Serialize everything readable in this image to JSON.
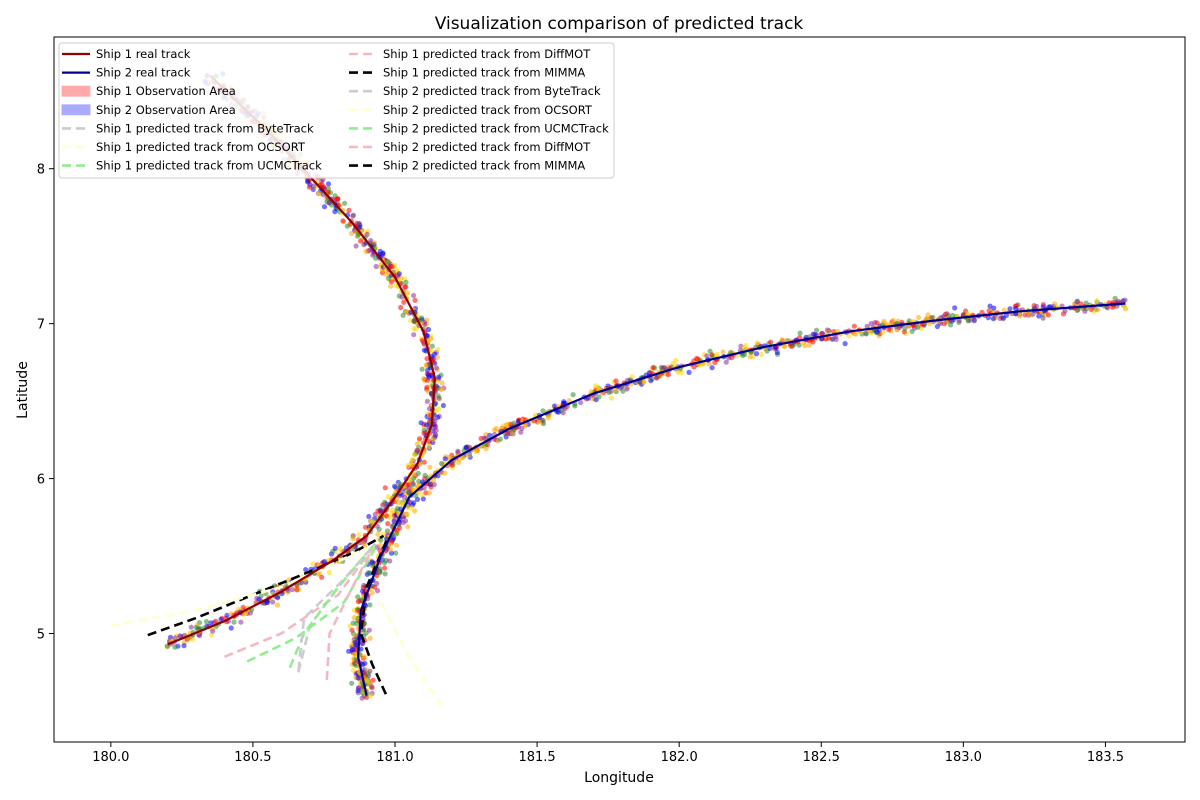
{
  "chart_data": {
    "type": "line",
    "title": "Visualization comparison of predicted track",
    "xlabel": "Longitude",
    "ylabel": "Latitude",
    "xlim": [
      179.8,
      183.78
    ],
    "ylim": [
      4.3,
      8.85
    ],
    "xticks": [
      "180.0",
      "180.5",
      "181.0",
      "181.5",
      "182.0",
      "182.5",
      "183.0",
      "183.5"
    ],
    "yticks": [
      "5",
      "6",
      "7",
      "8"
    ],
    "grid": false,
    "legend_position": "top-left",
    "legend_columns": 2,
    "legend": [
      {
        "label": "Ship 1 real track",
        "kind": "line",
        "color": "#8b0000"
      },
      {
        "label": "Ship 2 real track",
        "kind": "line",
        "color": "#00008b"
      },
      {
        "label": "Ship 1 Observation Area",
        "kind": "patch",
        "color": "#ffaaaa"
      },
      {
        "label": "Ship 2 Observation Area",
        "kind": "patch",
        "color": "#aaaaff"
      },
      {
        "label": "Ship 1 predicted track from ByteTrack",
        "kind": "dash",
        "color": "#cccccc"
      },
      {
        "label": "Ship 1 predicted track from OCSORT",
        "kind": "dash",
        "color": "#ffffd0"
      },
      {
        "label": "Ship 1 predicted track from UCMCTrack",
        "kind": "dash",
        "color": "#90ee90"
      },
      {
        "label": "Ship 1 predicted track from DiffMOT",
        "kind": "dash",
        "color": "#f4b8c0"
      },
      {
        "label": "Ship 1 predicted track from MIMMA",
        "kind": "dash",
        "color": "#000000"
      },
      {
        "label": "Ship 2 predicted track from ByteTrack",
        "kind": "dash",
        "color": "#cccccc"
      },
      {
        "label": "Ship 2 predicted track from OCSORT",
        "kind": "dash",
        "color": "#ffffd0"
      },
      {
        "label": "Ship 2 predicted track from UCMCTrack",
        "kind": "dash",
        "color": "#90ee90"
      },
      {
        "label": "Ship 2 predicted track from DiffMOT",
        "kind": "dash",
        "color": "#f4b8c0"
      },
      {
        "label": "Ship 2 predicted track from MIMMA",
        "kind": "dash",
        "color": "#000000"
      }
    ],
    "series": [
      {
        "name": "Ship 1 real track",
        "color": "#8b0000",
        "x": [
          180.2,
          180.4,
          180.6,
          180.78,
          180.9,
          181.0,
          181.08,
          181.13,
          181.14,
          181.1,
          181.0,
          180.85,
          180.75,
          180.65,
          180.55,
          180.45,
          180.35
        ],
        "y": [
          4.93,
          5.08,
          5.27,
          5.47,
          5.63,
          5.88,
          6.1,
          6.35,
          6.65,
          6.95,
          7.3,
          7.65,
          7.85,
          8.05,
          8.25,
          8.42,
          8.6
        ]
      },
      {
        "name": "Ship 2 real track",
        "color": "#00008b",
        "x": [
          180.9,
          180.87,
          180.88,
          180.95,
          181.05,
          181.2,
          181.4,
          181.7,
          182.0,
          182.3,
          182.6,
          182.9,
          183.2,
          183.57
        ],
        "y": [
          4.6,
          4.85,
          5.15,
          5.5,
          5.88,
          6.12,
          6.32,
          6.55,
          6.72,
          6.85,
          6.95,
          7.02,
          7.08,
          7.13
        ]
      },
      {
        "name": "Ship 1 predicted track from MIMMA",
        "color": "#000000",
        "dashed": true,
        "x": [
          180.13,
          180.3,
          180.5,
          180.7,
          180.85,
          180.96
        ],
        "y": [
          4.99,
          5.1,
          5.25,
          5.4,
          5.52,
          5.63
        ]
      },
      {
        "name": "Ship 2 predicted track from MIMMA",
        "color": "#000000",
        "dashed": true,
        "x": [
          180.97,
          180.9,
          180.88,
          180.92,
          180.97
        ],
        "y": [
          5.6,
          5.3,
          5.0,
          4.8,
          4.6
        ]
      },
      {
        "name": "Ship 1 predicted track from DiffMOT",
        "color": "#f4b8c0",
        "dashed": true,
        "x": [
          180.4,
          180.6,
          180.8,
          180.92
        ],
        "y": [
          4.85,
          5.0,
          5.25,
          5.55
        ]
      },
      {
        "name": "Ship 1 predicted track from UCMCTrack",
        "color": "#90ee90",
        "dashed": true,
        "x": [
          180.48,
          180.65,
          180.82,
          180.93
        ],
        "y": [
          4.82,
          4.97,
          5.2,
          5.55
        ]
      },
      {
        "name": "Ship 1 predicted track from ByteTrack",
        "color": "#cccccc",
        "dashed": true,
        "x": [
          180.66,
          180.7,
          180.8,
          180.93
        ],
        "y": [
          4.75,
          5.05,
          5.3,
          5.58
        ]
      },
      {
        "name": "Ship 1 predicted track from OCSORT",
        "color": "#ffffd0",
        "dashed": true,
        "x": [
          180.0,
          180.3,
          180.6,
          180.9
        ],
        "y": [
          5.05,
          5.15,
          5.3,
          5.55
        ]
      },
      {
        "name": "Ship 2 predicted track from DiffMOT",
        "color": "#f4b8c0",
        "dashed": true,
        "x": [
          180.76,
          180.77,
          180.85,
          180.93
        ],
        "y": [
          4.7,
          5.0,
          5.3,
          5.58
        ]
      },
      {
        "name": "Ship 2 predicted track from UCMCTrack",
        "color": "#90ee90",
        "dashed": true,
        "x": [
          180.63,
          180.68,
          180.8,
          180.93
        ],
        "y": [
          4.78,
          5.0,
          5.3,
          5.58
        ]
      },
      {
        "name": "Ship 2 predicted track from ByteTrack",
        "color": "#cccccc",
        "dashed": true,
        "x": [
          180.66,
          180.68,
          180.82,
          180.93
        ],
        "y": [
          4.76,
          5.1,
          5.35,
          5.58
        ]
      },
      {
        "name": "Ship 2 predicted track from OCSORT",
        "color": "#ffffd0",
        "dashed": true,
        "x": [
          180.95,
          181.05,
          181.17
        ],
        "y": [
          5.2,
          4.85,
          4.52
        ]
      }
    ],
    "observation_colors": [
      "#ff0000",
      "#0000ff",
      "#ffa500",
      "#2e8b2e",
      "#8e2c9e",
      "#ffd700"
    ]
  }
}
